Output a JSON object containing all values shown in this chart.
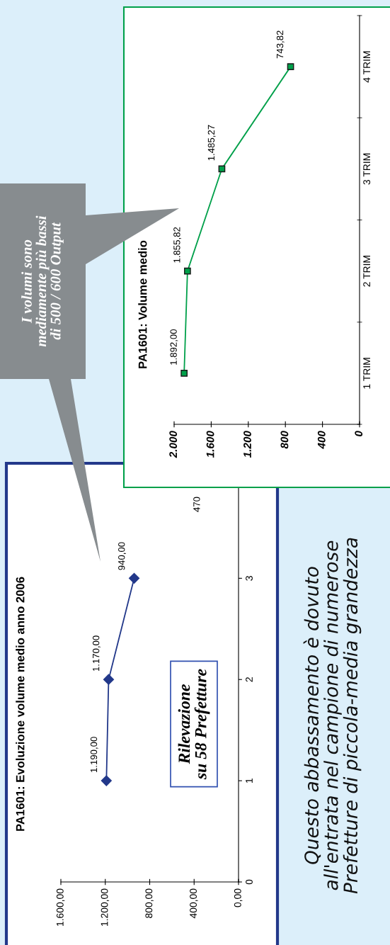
{
  "chart_data": [
    {
      "type": "line",
      "title": "PA1601: Evoluzione volume medio anno 2006",
      "orientation": "horizontal",
      "marker": "diamond",
      "line_style": "solid",
      "x": [
        1,
        2,
        3
      ],
      "series": [
        {
          "color": "#22388a",
          "values": [
            1190,
            1170,
            940
          ],
          "value_labels": [
            "1.190,00",
            "1.170,00",
            "940,00"
          ]
        }
      ],
      "xlim": [
        1600,
        0
      ],
      "xticks": [
        {
          "value": 1600,
          "label": "1.600,00"
        },
        {
          "value": 1200,
          "label": "1.200,00"
        },
        {
          "value": 800,
          "label": "800,00"
        },
        {
          "value": 400,
          "label": "400,00"
        },
        {
          "value": 0,
          "label": "0,00"
        }
      ],
      "ylim": [
        0,
        4.5
      ],
      "yticks": [
        0,
        1,
        2,
        3
      ],
      "annotations": [
        "470",
        "Rilevazione\nsu 58 Prefetture",
        "Questo abbassamento è dovuto\nall'entrata nel campione di numerose\nPrefetture di piccola-media grandezza"
      ]
    },
    {
      "type": "line",
      "title": "PA1601: Volume medio",
      "orientation": "horizontal",
      "marker": "square",
      "line_style": "solid",
      "categories": [
        "4 TRIM",
        "3 TRIM",
        "2 TRIM",
        "1 TRIM"
      ],
      "series": [
        {
          "color": "#00a04a",
          "values": [
            743.82,
            1485.27,
            1855.82,
            1892
          ],
          "value_labels": [
            "743,82",
            "1.485,27",
            "1.855,82",
            "1.892,00"
          ]
        }
      ],
      "xlim": [
        2000,
        0
      ],
      "xticks": [
        {
          "value": 2000,
          "label": "2.000"
        },
        {
          "value": 1600,
          "label": "1.600"
        },
        {
          "value": 1200,
          "label": "1.200"
        },
        {
          "value": 800,
          "label": "800"
        },
        {
          "value": 400,
          "label": "400"
        },
        0
      ],
      "annotations": [
        "I volumi sono\nmediamente più bassi\ndi 500 / 600 Output"
      ]
    }
  ]
}
